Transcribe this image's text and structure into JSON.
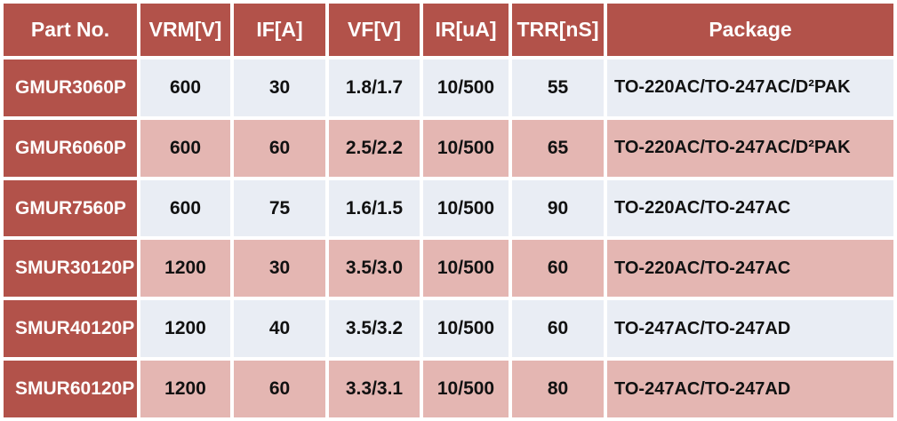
{
  "table": {
    "columns": [
      {
        "id": "part_no",
        "label": "Part No."
      },
      {
        "id": "vrm",
        "label": "VRM[V]"
      },
      {
        "id": "if",
        "label": "IF[A]"
      },
      {
        "id": "vf",
        "label": "VF[V]"
      },
      {
        "id": "ir",
        "label": "IR[uA]"
      },
      {
        "id": "trr",
        "label": "TRR[nS]"
      },
      {
        "id": "package",
        "label": "Package"
      }
    ],
    "rows": [
      {
        "part_no": "GMUR3060P",
        "vrm": "600",
        "if": "30",
        "vf": "1.8/1.7",
        "ir": "10/500",
        "trr": "55",
        "package": "TO-220AC/TO-247AC/D²PAK"
      },
      {
        "part_no": "GMUR6060P",
        "vrm": "600",
        "if": "60",
        "vf": "2.5/2.2",
        "ir": "10/500",
        "trr": "65",
        "package": "TO-220AC/TO-247AC/D²PAK"
      },
      {
        "part_no": "GMUR7560P",
        "vrm": "600",
        "if": "75",
        "vf": "1.6/1.5",
        "ir": "10/500",
        "trr": "90",
        "package": "TO-220AC/TO-247AC"
      },
      {
        "part_no": "SMUR30120P",
        "vrm": "1200",
        "if": "30",
        "vf": "3.5/3.0",
        "ir": "10/500",
        "trr": "60",
        "package": "TO-220AC/TO-247AC"
      },
      {
        "part_no": "SMUR40120P",
        "vrm": "1200",
        "if": "40",
        "vf": "3.5/3.2",
        "ir": "10/500",
        "trr": "60",
        "package": "TO-247AC/TO-247AD"
      },
      {
        "part_no": "SMUR60120P",
        "vrm": "1200",
        "if": "60",
        "vf": "3.3/3.1",
        "ir": "10/500",
        "trr": "80",
        "package": "TO-247AC/TO-247AD"
      }
    ]
  },
  "colors": {
    "header_bg": "#b2524a",
    "header_text": "#ffffff",
    "row_stripe_light": "#e9edf4",
    "row_stripe_pink": "#e4b6b2",
    "cell_text": "#111111",
    "grid_gap": "#ffffff"
  }
}
